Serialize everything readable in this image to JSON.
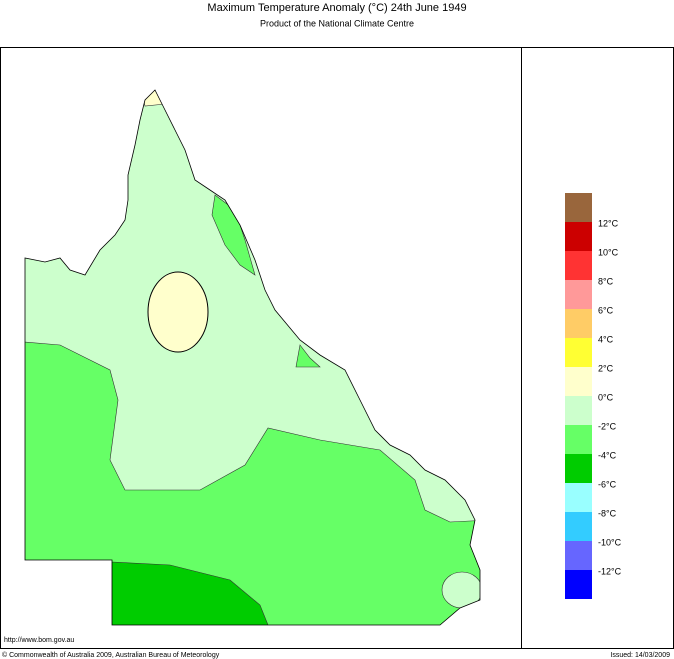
{
  "header": {
    "title": "Maximum Temperature Anomaly (°C)  24th June 1949",
    "subtitle": "Product of the National Climate Centre"
  },
  "legend": {
    "colors": [
      "#99663c",
      "#cc0000",
      "#ff3333",
      "#ff9999",
      "#ffcc66",
      "#ffff33",
      "#ffffcc",
      "#ccffcc",
      "#66ff66",
      "#00cc00",
      "#99ffff",
      "#33ccff",
      "#6666ff",
      "#0000ff"
    ],
    "labels": [
      "12°C",
      "10°C",
      "8°C",
      "6°C",
      "4°C",
      "2°C",
      "0°C",
      "-2°C",
      "-4°C",
      "-6°C",
      "-8°C",
      "-10°C",
      "-12°C"
    ]
  },
  "footer": {
    "url": "http://www.bom.gov.au",
    "copyright": "© Commonwealth of Australia 2009, Australian Bureau of Meteorology",
    "issued": "Issued: 14/03/2009"
  }
}
